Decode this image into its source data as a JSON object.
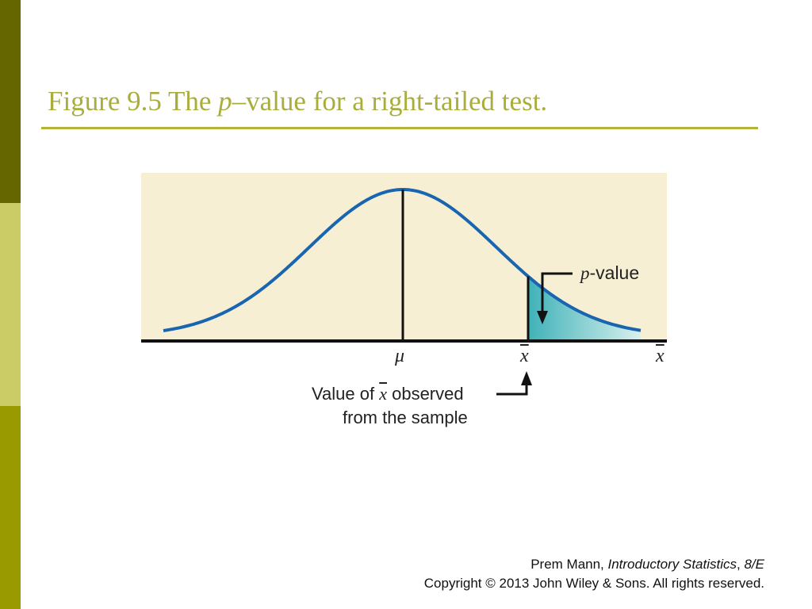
{
  "slide": {
    "title_prefix": "Figure 9.5 The ",
    "title_italic": "p",
    "title_suffix": "–value for a right-tailed test."
  },
  "figure": {
    "mu_label": "μ",
    "xbar_label": "x",
    "axis_end_label": "x",
    "pvalue_italic": "p",
    "pvalue_suffix": "-value",
    "observed_prefix": "Value of ",
    "observed_symbol": "x",
    "observed_suffix": " observed",
    "observed_line2": "from the sample",
    "colors": {
      "curve": "#1a65b0",
      "tail_fill": "#6cc4c8",
      "panel_bg": "#f6efd4",
      "axis": "#111111"
    }
  },
  "footer": {
    "author": "Prem Mann, ",
    "book": "Introductory Statistics",
    "edition_sep": ", ",
    "edition": "8/E",
    "copyright": "Copyright © 2013 John Wiley & Sons. All rights reserved."
  }
}
